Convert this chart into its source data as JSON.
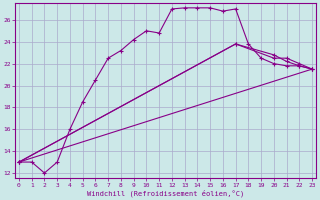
{
  "xlabel": "Windchill (Refroidissement éolien,°C)",
  "bg_color": "#cce8e8",
  "grid_color": "#aaaacc",
  "line_color": "#880088",
  "x_ticks": [
    0,
    1,
    2,
    3,
    4,
    5,
    6,
    7,
    8,
    9,
    10,
    11,
    12,
    13,
    14,
    15,
    16,
    17,
    18,
    19,
    20,
    21,
    22,
    23
  ],
  "y_ticks": [
    12,
    14,
    16,
    18,
    20,
    22,
    24,
    26
  ],
  "ylim": [
    11.5,
    27.5
  ],
  "xlim": [
    -0.3,
    23.3
  ],
  "series1_x": [
    0,
    1,
    2,
    3,
    4,
    5,
    6,
    7,
    8,
    9,
    10,
    11,
    12,
    13,
    14,
    15,
    16,
    17,
    18,
    19,
    20,
    21,
    22,
    23
  ],
  "series1_y": [
    13.0,
    13.0,
    12.0,
    13.0,
    16.0,
    18.5,
    20.5,
    22.5,
    23.2,
    24.2,
    25.0,
    24.8,
    27.0,
    27.1,
    27.1,
    27.1,
    26.8,
    27.0,
    23.8,
    22.5,
    22.0,
    21.8,
    21.8,
    21.5
  ],
  "series2_x": [
    0,
    23
  ],
  "series2_y": [
    13.0,
    21.5
  ],
  "series3_x": [
    0,
    17,
    20,
    21,
    22,
    23
  ],
  "series3_y": [
    13.0,
    23.8,
    22.5,
    22.5,
    22.0,
    21.5
  ],
  "series4_x": [
    0,
    17,
    20,
    21,
    22,
    23
  ],
  "series4_y": [
    13.0,
    23.8,
    22.8,
    22.2,
    21.8,
    21.5
  ]
}
